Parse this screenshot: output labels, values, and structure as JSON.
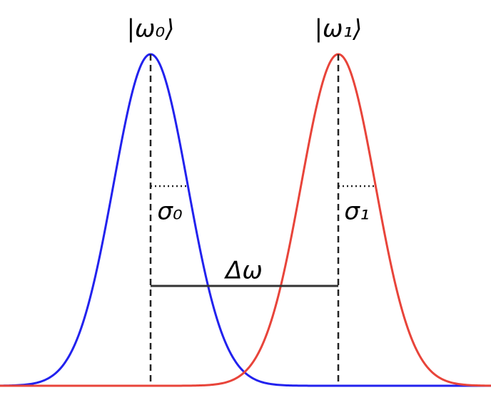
{
  "labels": {
    "state_0": "|ω₀⟩",
    "state_1": "|ω₁⟩",
    "sigma_0": "σ₀",
    "sigma_1": "σ₁",
    "delta": "Δω"
  }
}
